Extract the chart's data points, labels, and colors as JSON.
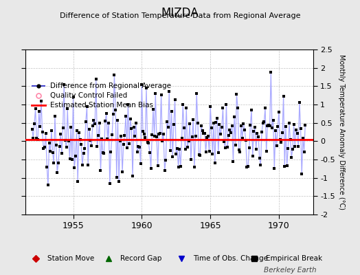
{
  "title": "MIZDA",
  "subtitle": "Difference of Station Temperature Data from Regional Average",
  "ylabel": "Monthly Temperature Anomaly Difference (°C)",
  "xlim": [
    1951.5,
    1972.5
  ],
  "ylim": [
    -2.0,
    2.5
  ],
  "yticks": [
    -2.0,
    -1.5,
    -1.0,
    -0.5,
    0.0,
    0.5,
    1.0,
    1.5,
    2.0,
    2.5
  ],
  "xticks": [
    1955,
    1960,
    1965,
    1970
  ],
  "bias_value": 0.05,
  "background_color": "#e8e8e8",
  "plot_bg_color": "#ffffff",
  "line_color": "#4444cc",
  "line_alpha_color": "#aaaaff",
  "marker_color": "#000000",
  "bias_color": "#ff0000",
  "watermark": "Berkeley Earth",
  "legend1_items": [
    "Difference from Regional Average",
    "Quality Control Failed",
    "Estimated Station Mean Bias"
  ],
  "legend2_items": [
    "Station Move",
    "Record Gap",
    "Time of Obs. Change",
    "Empirical Break"
  ],
  "legend2_colors": [
    "#cc0000",
    "#006600",
    "#0000cc",
    "#000000"
  ],
  "legend2_markers": [
    "D",
    "^",
    "v",
    "s"
  ],
  "seed": 42,
  "n_points": 240,
  "start_year": 1952.0
}
